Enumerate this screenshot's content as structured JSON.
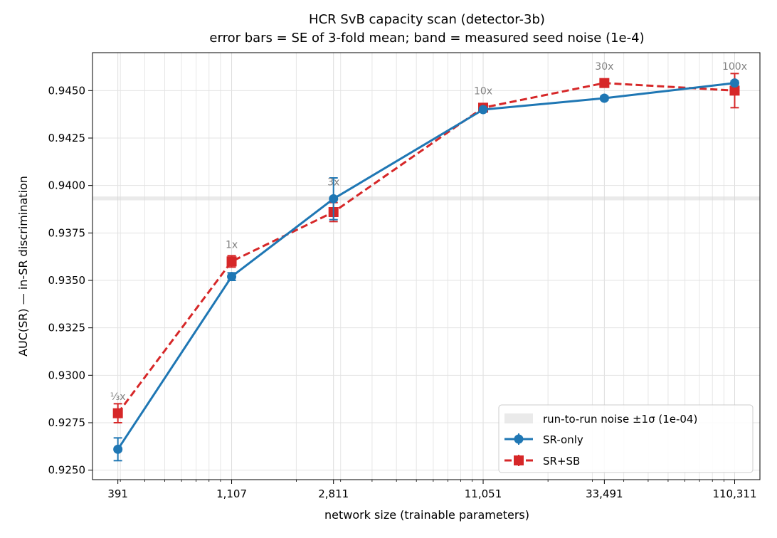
{
  "chart_data": {
    "type": "line",
    "title": "HCR SvB capacity scan (detector-3b)",
    "subtitle": "error bars = SE of 3-fold mean; band = measured seed noise (1e-4)",
    "xlabel": "network size (trainable parameters)",
    "ylabel": "AUC(SR)  —  in-SR discrimination",
    "xscale": "log",
    "x": [
      391,
      1107,
      2811,
      11051,
      33491,
      110311
    ],
    "x_tick_labels": [
      "391",
      "1,107",
      "2,811",
      "11,051",
      "33,491",
      "110,311"
    ],
    "ylim": [
      0.9245,
      0.947
    ],
    "y_ticks": [
      0.925,
      0.9275,
      0.93,
      0.9325,
      0.935,
      0.9375,
      0.94,
      0.9425,
      0.945
    ],
    "y_tick_labels": [
      "0.9250",
      "0.9275",
      "0.9300",
      "0.9325",
      "0.9350",
      "0.9375",
      "0.9400",
      "0.9425",
      "0.9450"
    ],
    "grid": true,
    "legend_position": "lower-right",
    "noise_band": {
      "label": "run-to-run noise  ±1σ (1e-04)",
      "center": 0.93932,
      "halfwidth": 0.0001,
      "color": "#d9d9d9"
    },
    "series": [
      {
        "name": "SR-only",
        "color": "#1f77b4",
        "marker": "circle",
        "linestyle": "solid",
        "values": [
          0.9261,
          0.9352,
          0.9393,
          0.944,
          0.9446,
          0.9454
        ],
        "errors": [
          0.0006,
          0.0002,
          0.0011,
          0.0001,
          0.0001,
          0.0001
        ]
      },
      {
        "name": "SR+SB",
        "color": "#d62728",
        "marker": "square",
        "linestyle": "dashed",
        "values": [
          0.928,
          0.936,
          0.9386,
          0.9441,
          0.9454,
          0.945
        ],
        "errors": [
          0.0005,
          0.0003,
          0.0005,
          0.0002,
          0.0001,
          0.0009
        ]
      }
    ],
    "annotations": [
      {
        "text": "⅓x",
        "x": 391,
        "y": 0.9287
      },
      {
        "text": "1x",
        "x": 1107,
        "y": 0.9367
      },
      {
        "text": "3x",
        "x": 2811,
        "y": 0.94
      },
      {
        "text": "10x",
        "x": 11051,
        "y": 0.9448
      },
      {
        "text": "30x",
        "x": 33491,
        "y": 0.9461
      },
      {
        "text": "100x",
        "x": 110311,
        "y": 0.9461
      }
    ]
  }
}
